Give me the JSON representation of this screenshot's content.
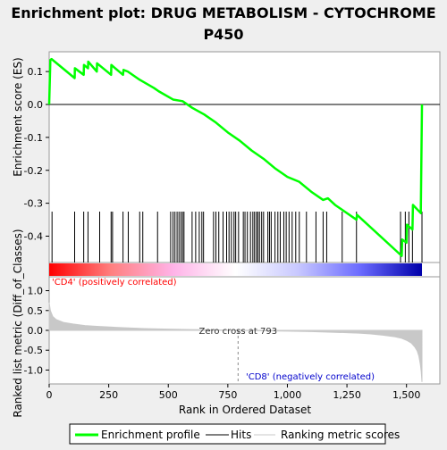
{
  "chart_data": {
    "type": "line",
    "title": "Enrichment plot: DRUG METABOLISM - CYTOCHROME P450",
    "title_lines": [
      "Enrichment plot: DRUG METABOLISM - CYTOCHROME",
      "P450"
    ],
    "top_panel": {
      "ylabel": "Enrichment score (ES)",
      "ylim": [
        -0.48,
        0.16
      ],
      "yticks": [
        0.1,
        0.0,
        -0.1,
        -0.2,
        -0.3,
        -0.4
      ],
      "ytick_labels": [
        "0.1",
        "0.0",
        "-0.1",
        "-0.2",
        "-0.3",
        "-0.4"
      ],
      "series": [
        {
          "name": "Enrichment profile",
          "color": "#00ff00",
          "x": [
            0,
            5,
            10,
            107,
            108,
            145,
            146,
            163,
            164,
            200,
            201,
            260,
            261,
            310,
            312,
            330,
            380,
            440,
            460,
            520,
            560,
            600,
            650,
            700,
            750,
            800,
            850,
            900,
            950,
            1000,
            1050,
            1100,
            1150,
            1170,
            1200,
            1230,
            1290,
            1292,
            1480,
            1482,
            1500,
            1502,
            1525,
            1527,
            1560,
            1565
          ],
          "y": [
            0.0,
            0.135,
            0.138,
            0.08,
            0.11,
            0.09,
            0.12,
            0.11,
            0.13,
            0.1,
            0.125,
            0.09,
            0.12,
            0.09,
            0.105,
            0.1,
            0.075,
            0.05,
            0.04,
            0.015,
            0.01,
            -0.01,
            -0.03,
            -0.055,
            -0.085,
            -0.11,
            -0.14,
            -0.165,
            -0.195,
            -0.22,
            -0.235,
            -0.265,
            -0.29,
            -0.285,
            -0.305,
            -0.32,
            -0.35,
            -0.335,
            -0.46,
            -0.41,
            -0.42,
            -0.365,
            -0.38,
            -0.305,
            -0.33,
            0.0
          ]
        }
      ]
    },
    "hits": {
      "color": "#000000",
      "x": [
        12,
        107,
        145,
        163,
        212,
        260,
        266,
        310,
        332,
        380,
        393,
        455,
        510,
        520,
        528,
        537,
        545,
        553,
        560,
        566,
        600,
        615,
        630,
        641,
        648,
        690,
        700,
        712,
        730,
        745,
        755,
        765,
        776,
        783,
        795,
        815,
        822,
        832,
        845,
        855,
        862,
        870,
        876,
        883,
        892,
        900,
        918,
        925,
        932,
        948,
        960,
        970,
        985,
        995,
        1007,
        1020,
        1035,
        1050,
        1080,
        1120,
        1150,
        1165,
        1230,
        1290,
        1475,
        1495,
        1510,
        1525,
        1565
      ]
    },
    "rank_bar": {
      "colors": [
        "#ff0000",
        "#ff8080",
        "#ffb3e8",
        "#ffffff",
        "#c8c8ff",
        "#6b6bff",
        "#0000aa"
      ]
    },
    "bottom_panel": {
      "ylabel": "Ranked list metric (Diff_of_Classes)",
      "ylim": [
        -1.35,
        1.35
      ],
      "yticks": [
        1.0,
        0.5,
        0.0,
        -0.5,
        -1.0
      ],
      "ytick_labels": [
        "1.0",
        "0.5",
        "0.0",
        "-0.5",
        "-1.0"
      ],
      "series": [
        {
          "name": "Ranking metric scores",
          "color": "#c8c8c8",
          "x": [
            0,
            5,
            15,
            30,
            60,
            100,
            150,
            200,
            300,
            400,
            500,
            600,
            700,
            793,
            900,
            1000,
            1100,
            1200,
            1300,
            1350,
            1400,
            1450,
            1480,
            1500,
            1520,
            1535,
            1545,
            1552,
            1558,
            1562,
            1565
          ],
          "y": [
            0.7,
            0.5,
            0.35,
            0.27,
            0.2,
            0.16,
            0.12,
            0.1,
            0.07,
            0.045,
            0.03,
            0.02,
            0.01,
            0.0,
            -0.01,
            -0.02,
            -0.03,
            -0.05,
            -0.07,
            -0.09,
            -0.12,
            -0.16,
            -0.2,
            -0.25,
            -0.32,
            -0.42,
            -0.52,
            -0.65,
            -0.85,
            -1.05,
            -1.3
          ]
        }
      ],
      "annotations": {
        "zero_cross": "Zero cross at 793",
        "zero_cross_x": 793,
        "positive": "'CD4' (positively correlated)",
        "negative": "'CD8' (negatively correlated)",
        "positive_color": "#ff0000",
        "negative_color": "#0000cc"
      }
    },
    "xlabel": "Rank in Ordered Dataset",
    "xlim": [
      0,
      1640
    ],
    "xticks": [
      0,
      250,
      500,
      750,
      1000,
      1250,
      1500
    ],
    "xtick_labels": [
      "0",
      "250",
      "500",
      "750",
      "1,000",
      "1,250",
      "1,500"
    ],
    "legend": {
      "placement": "bottom",
      "items": [
        {
          "label": "Enrichment profile",
          "color": "#00ff00"
        },
        {
          "label": "Hits",
          "color": "#000000"
        },
        {
          "label": "Ranking metric scores",
          "color": "#c8c8c8"
        }
      ]
    }
  }
}
